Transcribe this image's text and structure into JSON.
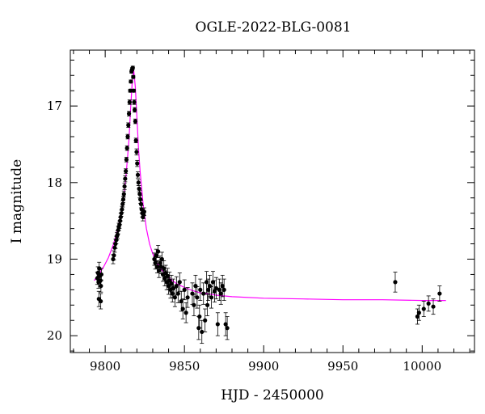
{
  "chart_data": {
    "type": "scatter",
    "title": "OGLE-2022-BLG-0081",
    "xlabel": "HJD - 2450000",
    "ylabel": "I magnitude",
    "xlim": [
      9778,
      10033
    ],
    "ylim": [
      20.22,
      16.27
    ],
    "y_inverted": true,
    "x_ticks": [
      9800,
      9850,
      9900,
      9950,
      10000
    ],
    "y_ticks": [
      17,
      18,
      19,
      20
    ],
    "grid": false,
    "colors": {
      "points": "#000000",
      "model": "#ff00ff"
    },
    "series": [
      {
        "x": [
          9795.0,
          9795.4,
          9795.8,
          9796.2,
          9796.6,
          9797.0,
          9797.3,
          9797.6,
          9796.0,
          9797.2,
          9805.0,
          9805.5,
          9806.0,
          9806.5,
          9807.0,
          9807.4,
          9807.8,
          9808.2,
          9808.6,
          9809.0,
          9809.4,
          9809.8,
          9810.2,
          9810.6,
          9811.0,
          9811.4,
          9811.8,
          9812.2,
          9812.6,
          9813.0,
          9813.4,
          9813.8,
          9814.2,
          9814.6,
          9815.0,
          9815.4,
          9815.8,
          9816.2,
          9816.6,
          9817.0,
          9817.4,
          9817.7,
          9818.0,
          9818.3,
          9818.6,
          9819.0,
          9819.4,
          9819.8,
          9820.2,
          9820.6,
          9821.0,
          9821.4,
          9821.8,
          9822.2,
          9822.6,
          9823.0,
          9823.4,
          9823.8,
          9824.2,
          9824.6,
          9831.0,
          9831.6,
          9832.2,
          9832.8,
          9833.4,
          9834.0,
          9834.6,
          9835.2,
          9835.8,
          9836.4,
          9837.0,
          9837.6,
          9838.2,
          9838.8,
          9839.4,
          9840.0,
          9840.6,
          9841.2,
          9841.8,
          9842.4,
          9843.0,
          9844.0,
          9845.0,
          9846.0,
          9847.0,
          9848.0,
          9849.0,
          9850.0,
          9851.0,
          9852.0,
          9855.0,
          9856.0,
          9857.0,
          9858.0,
          9859.0,
          9860.0,
          9861.0,
          9862.0,
          9863.0,
          9864.0,
          9865.0,
          9866.0,
          9867.0,
          9868.0,
          9869.0,
          9870.0,
          9871.0,
          9872.0,
          9873.0,
          9874.0,
          9875.0,
          9876.0,
          9877.0,
          9859.5,
          9864.5,
          9983.0,
          9997.0,
          9998.0,
          10001.0,
          10004.0,
          10007.0,
          10011.0
        ],
        "y": [
          19.25,
          19.18,
          19.3,
          19.12,
          19.22,
          19.28,
          19.35,
          19.2,
          19.52,
          19.55,
          19.0,
          18.95,
          18.85,
          18.8,
          18.75,
          18.7,
          18.68,
          18.62,
          18.58,
          18.55,
          18.5,
          18.45,
          18.4,
          18.35,
          18.28,
          18.22,
          18.15,
          18.05,
          17.95,
          17.85,
          17.7,
          17.55,
          17.4,
          17.25,
          17.1,
          16.95,
          16.8,
          16.68,
          16.55,
          16.52,
          16.5,
          16.62,
          16.8,
          16.95,
          17.05,
          17.2,
          17.45,
          17.6,
          17.75,
          17.9,
          18.0,
          18.08,
          18.15,
          18.22,
          18.28,
          18.35,
          18.4,
          18.45,
          18.42,
          18.38,
          19.0,
          19.05,
          18.95,
          19.1,
          18.9,
          19.15,
          19.05,
          19.1,
          19.0,
          19.2,
          19.12,
          19.25,
          19.18,
          19.3,
          19.22,
          19.35,
          19.28,
          19.4,
          19.32,
          19.45,
          19.38,
          19.5,
          19.35,
          19.45,
          19.3,
          19.55,
          19.65,
          19.4,
          19.7,
          19.5,
          19.45,
          19.6,
          19.35,
          19.5,
          19.9,
          19.4,
          19.95,
          19.45,
          19.8,
          19.3,
          19.4,
          19.35,
          19.5,
          19.3,
          19.42,
          19.38,
          19.85,
          19.4,
          19.45,
          19.35,
          19.4,
          19.85,
          19.9,
          19.75,
          19.6,
          19.3,
          19.75,
          19.7,
          19.65,
          19.58,
          19.62,
          19.45
        ],
        "err": [
          0.08,
          0.08,
          0.08,
          0.08,
          0.08,
          0.08,
          0.08,
          0.08,
          0.1,
          0.1,
          0.06,
          0.06,
          0.06,
          0.06,
          0.05,
          0.05,
          0.05,
          0.05,
          0.05,
          0.05,
          0.05,
          0.05,
          0.04,
          0.04,
          0.04,
          0.04,
          0.04,
          0.04,
          0.04,
          0.03,
          0.03,
          0.03,
          0.03,
          0.03,
          0.03,
          0.03,
          0.02,
          0.02,
          0.02,
          0.02,
          0.02,
          0.02,
          0.02,
          0.03,
          0.03,
          0.03,
          0.03,
          0.04,
          0.04,
          0.04,
          0.04,
          0.04,
          0.05,
          0.05,
          0.05,
          0.05,
          0.05,
          0.05,
          0.05,
          0.05,
          0.08,
          0.08,
          0.08,
          0.08,
          0.08,
          0.09,
          0.09,
          0.09,
          0.09,
          0.09,
          0.1,
          0.1,
          0.1,
          0.1,
          0.1,
          0.11,
          0.11,
          0.11,
          0.11,
          0.11,
          0.12,
          0.12,
          0.12,
          0.12,
          0.12,
          0.13,
          0.13,
          0.13,
          0.13,
          0.13,
          0.14,
          0.14,
          0.14,
          0.14,
          0.15,
          0.14,
          0.15,
          0.14,
          0.15,
          0.14,
          0.14,
          0.14,
          0.14,
          0.14,
          0.14,
          0.14,
          0.15,
          0.14,
          0.14,
          0.14,
          0.14,
          0.15,
          0.15,
          0.15,
          0.14,
          0.13,
          0.1,
          0.1,
          0.1,
          0.1,
          0.1,
          0.1
        ]
      }
    ],
    "model": {
      "x": [
        9793,
        9796,
        9799,
        9802,
        9805,
        9808,
        9811,
        9813,
        9815,
        9816,
        9817,
        9818,
        9819,
        9820,
        9821,
        9822,
        9824,
        9826,
        9828,
        9830,
        9833,
        9836,
        9840,
        9845,
        9850,
        9855,
        9860,
        9870,
        9880,
        9900,
        9925,
        9950,
        9975,
        10000,
        10015
      ],
      "y": [
        19.28,
        19.2,
        19.1,
        18.98,
        18.82,
        18.6,
        18.3,
        17.95,
        17.45,
        17.05,
        16.7,
        16.53,
        16.75,
        17.15,
        17.55,
        17.85,
        18.3,
        18.6,
        18.8,
        18.93,
        19.06,
        19.15,
        19.24,
        19.32,
        19.37,
        19.41,
        19.44,
        19.47,
        19.49,
        19.51,
        19.52,
        19.53,
        19.53,
        19.54,
        19.54
      ]
    }
  }
}
